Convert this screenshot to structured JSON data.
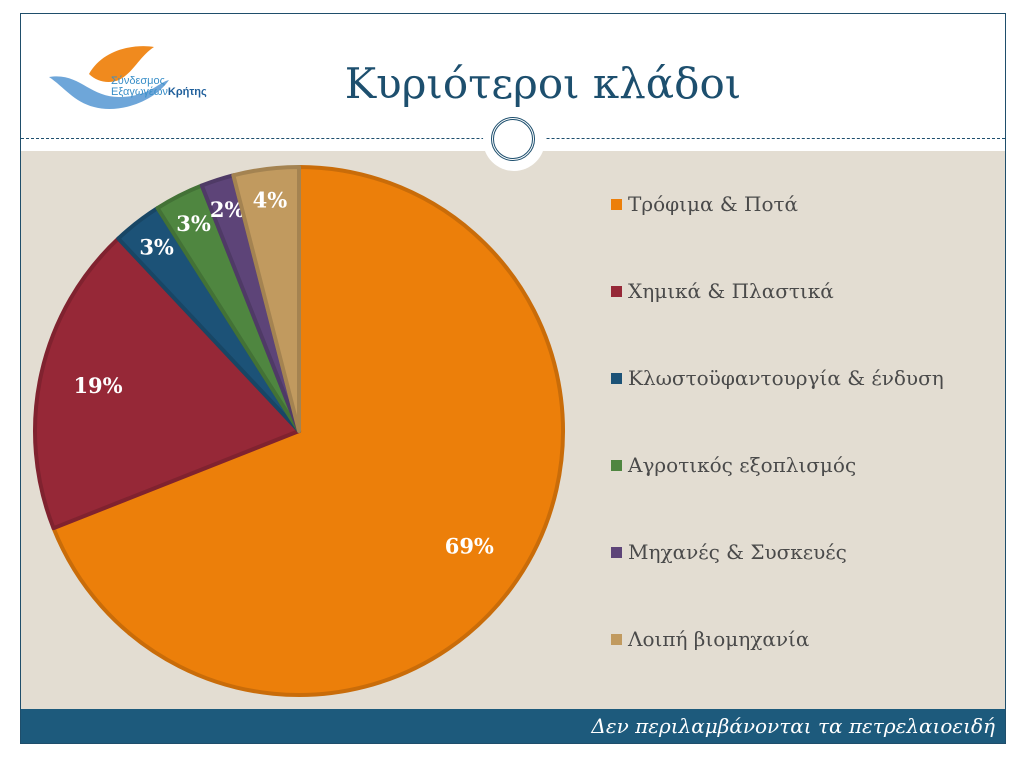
{
  "logo": {
    "line1": "Σύνδεσμος",
    "line2a": "Εξαγωγέων",
    "line2b": "Κρήτης"
  },
  "title": "Κυριότεροι κλάδοι",
  "footer": "Δεν περιλαμβάνονται τα πετρελαιοειδή",
  "chart_data": {
    "type": "pie",
    "title": "",
    "start": "top, clockwise",
    "legend_position": "right",
    "categories": [
      "Τρόφιμα & Ποτά",
      "Χημικά & Πλαστικά",
      "Κλωστοϋφαντουργία & ένδυση",
      "Αγροτικός εξοπλισμός",
      "Μηχανές & Συσκευές",
      "Λοιπή βιομηχανία"
    ],
    "values": [
      69,
      19,
      3,
      3,
      2,
      4
    ],
    "labels": [
      "69%",
      "19%",
      "3%",
      "3%",
      "2%",
      "4%"
    ],
    "colors": [
      "#ec7f0a",
      "#962837",
      "#1c5277",
      "#4f8640",
      "#5d4478",
      "#c19a5f"
    ]
  }
}
